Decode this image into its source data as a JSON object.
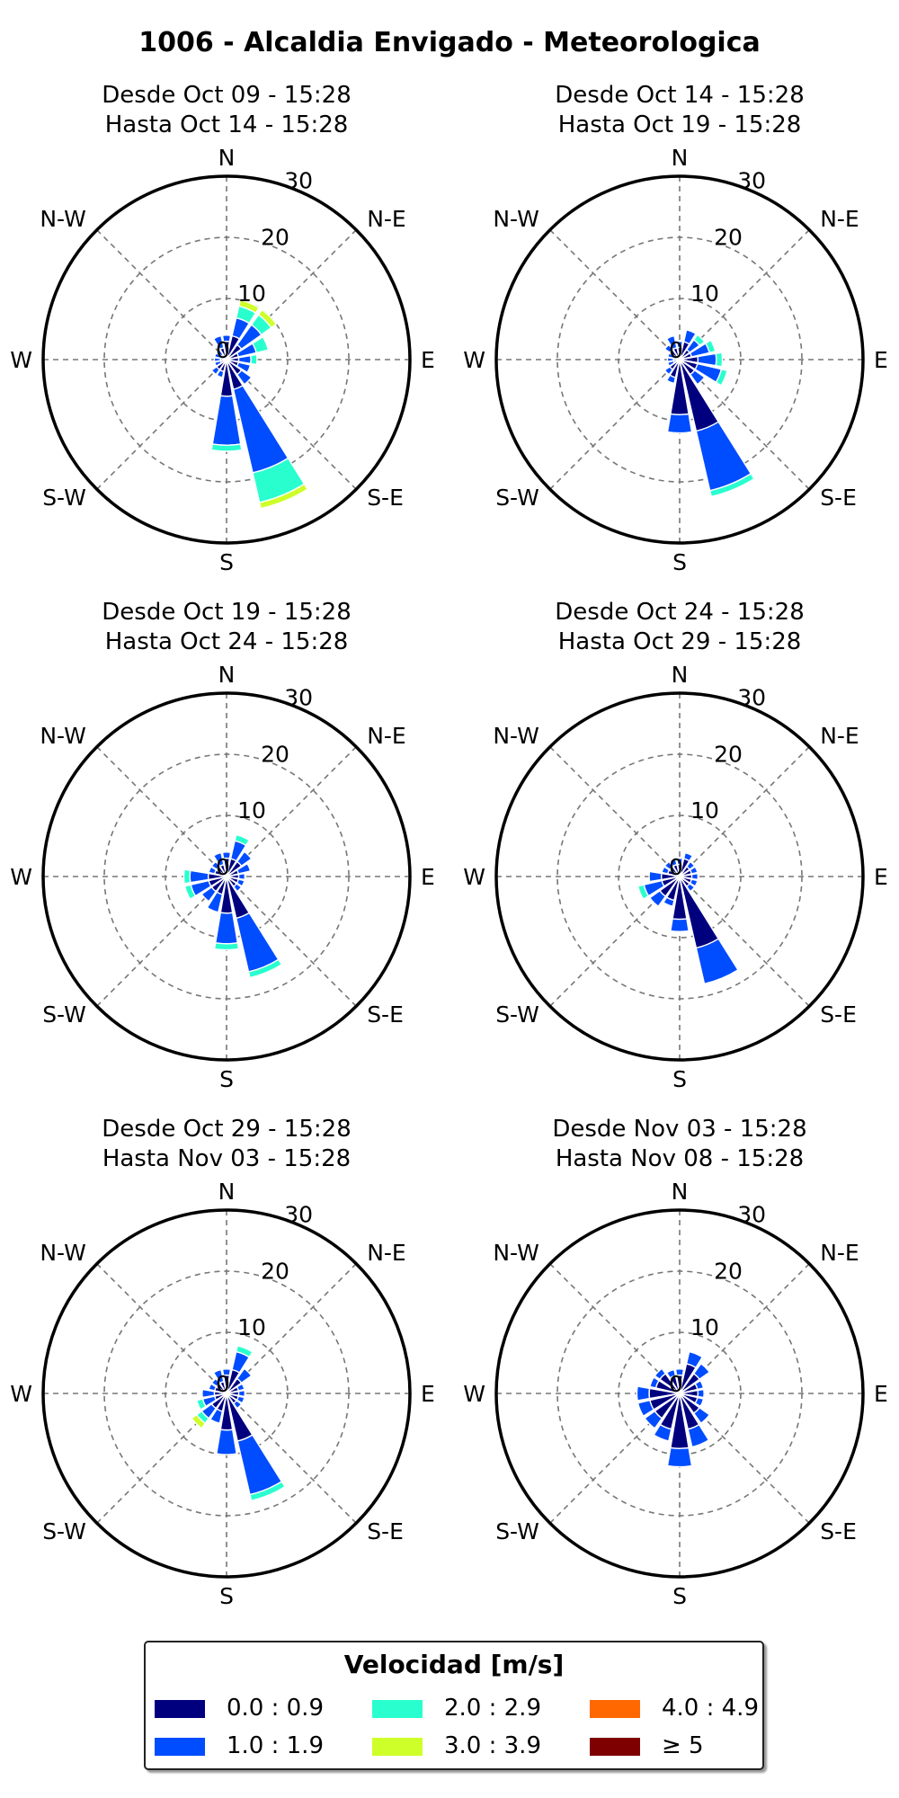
{
  "title": "1006 - Alcaldia Envigado - Meteorologica",
  "legend": {
    "title": "Velocidad [m/s]",
    "bins": [
      {
        "label": "0.0 : 0.9",
        "color": "#00007f"
      },
      {
        "label": "1.0 : 1.9",
        "color": "#004cff"
      },
      {
        "label": "2.0 : 2.9",
        "color": "#29ffce"
      },
      {
        "label": "3.0 : 3.9",
        "color": "#ceff29"
      },
      {
        "label": "4.0 : 4.9",
        "color": "#ff6800"
      },
      {
        "label": "≥ 5",
        "color": "#7f0000"
      }
    ]
  },
  "chart_data": [
    {
      "type": "windrose",
      "title_line1": "Desde Oct 09 - 15:28",
      "title_line2": "Hasta Oct 14 - 15:28",
      "direction_labels": [
        "N",
        "N-E",
        "E",
        "S-E",
        "S",
        "S-W",
        "W",
        "N-W"
      ],
      "radial_ticks": [
        "0",
        "10",
        "20",
        "30"
      ],
      "rmax": 30,
      "directions_deg": [
        0,
        22.5,
        45,
        67.5,
        90,
        112.5,
        135,
        157.5,
        180,
        202.5,
        225,
        247.5,
        270,
        292.5,
        315,
        337.5
      ],
      "stacks": [
        [
          3,
          1,
          0,
          0,
          0,
          0
        ],
        [
          4,
          3,
          2,
          1,
          0,
          0
        ],
        [
          3,
          4,
          2,
          1,
          0,
          0
        ],
        [
          2,
          3,
          2,
          0,
          0,
          0
        ],
        [
          2,
          2,
          1,
          0,
          0,
          0
        ],
        [
          2,
          2,
          0,
          0,
          0,
          0
        ],
        [
          3,
          2,
          0,
          0,
          0,
          0
        ],
        [
          5,
          14,
          5,
          1,
          0,
          0
        ],
        [
          6,
          8,
          1,
          0,
          0,
          0
        ],
        [
          2,
          1,
          0,
          0,
          0,
          0
        ],
        [
          2,
          1,
          0,
          0,
          0,
          0
        ],
        [
          1,
          1,
          0,
          0,
          0,
          0
        ],
        [
          1,
          1,
          0,
          0,
          0,
          0
        ],
        [
          1,
          1,
          0,
          0,
          0,
          0
        ],
        [
          1,
          1,
          0,
          0,
          0,
          0
        ],
        [
          2,
          2,
          0,
          0,
          0,
          0
        ]
      ]
    },
    {
      "type": "windrose",
      "title_line1": "Desde Oct 14 - 15:28",
      "title_line2": "Hasta Oct 19 - 15:28",
      "direction_labels": [
        "N",
        "N-E",
        "E",
        "S-E",
        "S",
        "S-W",
        "W",
        "N-W"
      ],
      "radial_ticks": [
        "0",
        "10",
        "20",
        "30"
      ],
      "rmax": 30,
      "directions_deg": [
        0,
        22.5,
        45,
        67.5,
        90,
        112.5,
        135,
        157.5,
        180,
        202.5,
        225,
        247.5,
        270,
        292.5,
        315,
        337.5
      ],
      "stacks": [
        [
          2,
          1,
          0,
          0,
          0,
          0
        ],
        [
          3,
          2,
          0,
          0,
          0,
          0
        ],
        [
          2,
          2,
          1,
          0,
          0,
          0
        ],
        [
          2,
          3,
          1,
          0,
          0,
          0
        ],
        [
          3,
          3,
          1,
          0,
          0,
          0
        ],
        [
          3,
          4,
          1,
          0,
          0,
          0
        ],
        [
          3,
          2,
          0,
          0,
          0,
          0
        ],
        [
          12,
          10,
          1,
          0,
          0,
          0
        ],
        [
          9,
          3,
          0,
          0,
          0,
          0
        ],
        [
          3,
          1,
          0,
          0,
          0,
          0
        ],
        [
          2,
          1,
          0,
          0,
          0,
          0
        ],
        [
          1,
          1,
          0,
          0,
          0,
          0
        ],
        [
          1,
          1,
          0,
          0,
          0,
          0
        ],
        [
          1,
          1,
          0,
          0,
          0,
          0
        ],
        [
          2,
          1,
          0,
          0,
          0,
          0
        ],
        [
          2,
          2,
          0,
          0,
          0,
          0
        ]
      ]
    },
    {
      "type": "windrose",
      "title_line1": "Desde Oct 19 - 15:28",
      "title_line2": "Hasta Oct 24 - 15:28",
      "direction_labels": [
        "N",
        "N-E",
        "E",
        "S-E",
        "S",
        "S-W",
        "W",
        "N-W"
      ],
      "radial_ticks": [
        "0",
        "10",
        "20",
        "30"
      ],
      "rmax": 30,
      "directions_deg": [
        0,
        22.5,
        45,
        67.5,
        90,
        112.5,
        135,
        157.5,
        180,
        202.5,
        225,
        247.5,
        270,
        292.5,
        315,
        337.5
      ],
      "stacks": [
        [
          3,
          1,
          0,
          0,
          0,
          0
        ],
        [
          3,
          3,
          1,
          0,
          0,
          0
        ],
        [
          3,
          2,
          0,
          0,
          0,
          0
        ],
        [
          2,
          2,
          0,
          0,
          0,
          0
        ],
        [
          2,
          1,
          0,
          0,
          0,
          0
        ],
        [
          2,
          1,
          0,
          0,
          0,
          0
        ],
        [
          2,
          1,
          0,
          0,
          0,
          0
        ],
        [
          7,
          9,
          1,
          0,
          0,
          0
        ],
        [
          6,
          5,
          1,
          0,
          0,
          0
        ],
        [
          3,
          3,
          0,
          0,
          0,
          0
        ],
        [
          3,
          2,
          0,
          0,
          0,
          0
        ],
        [
          3,
          3,
          1,
          0,
          0,
          0
        ],
        [
          3,
          3,
          1,
          0,
          0,
          0
        ],
        [
          2,
          1,
          0,
          0,
          0,
          0
        ],
        [
          2,
          1,
          0,
          0,
          0,
          0
        ],
        [
          2,
          2,
          0,
          0,
          0,
          0
        ]
      ]
    },
    {
      "type": "windrose",
      "title_line1": "Desde Oct 24 - 15:28",
      "title_line2": "Hasta Oct 29 - 15:28",
      "direction_labels": [
        "N",
        "N-E",
        "E",
        "S-E",
        "S",
        "S-W",
        "W",
        "N-W"
      ],
      "radial_ticks": [
        "0",
        "10",
        "20",
        "30"
      ],
      "rmax": 30,
      "directions_deg": [
        0,
        22.5,
        45,
        67.5,
        90,
        112.5,
        135,
        157.5,
        180,
        202.5,
        225,
        247.5,
        270,
        292.5,
        315,
        337.5
      ],
      "stacks": [
        [
          2,
          1,
          0,
          0,
          0,
          0
        ],
        [
          3,
          1,
          0,
          0,
          0,
          0
        ],
        [
          2,
          1,
          0,
          0,
          0,
          0
        ],
        [
          2,
          1,
          0,
          0,
          0,
          0
        ],
        [
          2,
          1,
          0,
          0,
          0,
          0
        ],
        [
          2,
          1,
          0,
          0,
          0,
          0
        ],
        [
          2,
          1,
          0,
          0,
          0,
          0
        ],
        [
          12,
          6,
          0,
          0,
          0,
          0
        ],
        [
          7,
          2,
          0,
          0,
          0,
          0
        ],
        [
          4,
          1,
          0,
          0,
          0,
          0
        ],
        [
          4,
          2,
          0,
          0,
          0,
          0
        ],
        [
          3,
          3,
          1,
          0,
          0,
          0
        ],
        [
          3,
          2,
          0,
          0,
          0,
          0
        ],
        [
          2,
          1,
          0,
          0,
          0,
          0
        ],
        [
          2,
          1,
          0,
          0,
          0,
          0
        ],
        [
          2,
          1,
          0,
          0,
          0,
          0
        ]
      ]
    },
    {
      "type": "windrose",
      "title_line1": "Desde Oct 29 - 15:28",
      "title_line2": "Hasta Nov 03 - 15:28",
      "direction_labels": [
        "N",
        "N-E",
        "E",
        "S-E",
        "S",
        "S-W",
        "W",
        "N-W"
      ],
      "radial_ticks": [
        "0",
        "10",
        "20",
        "30"
      ],
      "rmax": 30,
      "directions_deg": [
        0,
        22.5,
        45,
        67.5,
        90,
        112.5,
        135,
        157.5,
        180,
        202.5,
        225,
        247.5,
        270,
        292.5,
        315,
        337.5
      ],
      "stacks": [
        [
          3,
          1,
          0,
          0,
          0,
          0
        ],
        [
          4,
          3,
          1,
          0,
          0,
          0
        ],
        [
          3,
          2,
          0,
          0,
          0,
          0
        ],
        [
          2,
          1,
          0,
          0,
          0,
          0
        ],
        [
          2,
          1,
          0,
          0,
          0,
          0
        ],
        [
          2,
          1,
          0,
          0,
          0,
          0
        ],
        [
          2,
          1,
          0,
          0,
          0,
          0
        ],
        [
          8,
          9,
          1,
          0,
          0,
          0
        ],
        [
          6,
          4,
          0,
          0,
          0,
          0
        ],
        [
          3,
          2,
          0,
          0,
          0,
          0
        ],
        [
          3,
          2,
          1,
          1,
          0,
          0
        ],
        [
          2,
          2,
          1,
          0,
          0,
          0
        ],
        [
          2,
          2,
          0,
          0,
          0,
          0
        ],
        [
          2,
          1,
          0,
          0,
          0,
          0
        ],
        [
          2,
          1,
          0,
          0,
          0,
          0
        ],
        [
          2,
          2,
          0,
          0,
          0,
          0
        ]
      ]
    },
    {
      "type": "windrose",
      "title_line1": "Desde Nov 03 - 15:28",
      "title_line2": "Hasta Nov 08 - 15:28",
      "direction_labels": [
        "N",
        "N-E",
        "E",
        "S-E",
        "S",
        "S-W",
        "W",
        "N-W"
      ],
      "radial_ticks": [
        "0",
        "10",
        "20",
        "30"
      ],
      "rmax": 30,
      "directions_deg": [
        0,
        22.5,
        45,
        67.5,
        90,
        112.5,
        135,
        157.5,
        180,
        202.5,
        225,
        247.5,
        270,
        292.5,
        315,
        337.5
      ],
      "stacks": [
        [
          3,
          1,
          0,
          0,
          0,
          0
        ],
        [
          5,
          2,
          0,
          0,
          0,
          0
        ],
        [
          4,
          2,
          0,
          0,
          0,
          0
        ],
        [
          3,
          1,
          0,
          0,
          0,
          0
        ],
        [
          3,
          1,
          0,
          0,
          0,
          0
        ],
        [
          3,
          1,
          0,
          0,
          0,
          0
        ],
        [
          4,
          2,
          0,
          0,
          0,
          0
        ],
        [
          6,
          3,
          0,
          0,
          0,
          0
        ],
        [
          9,
          3,
          0,
          0,
          0,
          0
        ],
        [
          6,
          2,
          0,
          0,
          0,
          0
        ],
        [
          5,
          2,
          0,
          0,
          0,
          0
        ],
        [
          5,
          2,
          0,
          0,
          0,
          0
        ],
        [
          5,
          2,
          0,
          0,
          0,
          0
        ],
        [
          4,
          1,
          0,
          0,
          0,
          0
        ],
        [
          4,
          1,
          0,
          0,
          0,
          0
        ],
        [
          3,
          1,
          0,
          0,
          0,
          0
        ]
      ]
    }
  ]
}
